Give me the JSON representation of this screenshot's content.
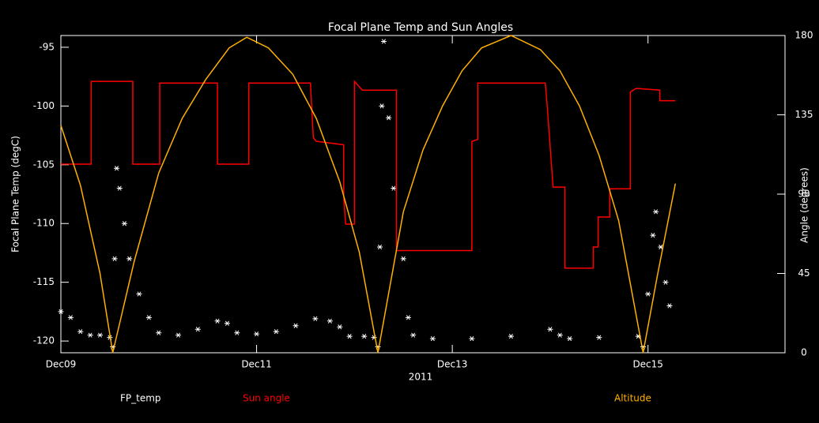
{
  "chart_data": {
    "type": "line",
    "title": "Focal Plane Temp and Sun Angles",
    "xlabel": "2011",
    "ylabel": "Focal Plane Temp (degC)",
    "y2label": "Angle (degrees)",
    "xlim": [
      0,
      7.4
    ],
    "xticks": [
      {
        "value": 0,
        "label": "Dec09"
      },
      {
        "value": 2,
        "label": "Dec11"
      },
      {
        "value": 4,
        "label": "Dec13"
      },
      {
        "value": 6,
        "label": "Dec15"
      }
    ],
    "ylim": [
      -121,
      -94
    ],
    "yticks": [
      -95,
      -100,
      -105,
      -110,
      -115,
      -120
    ],
    "y2lim": [
      0,
      180
    ],
    "y2ticks": [
      0,
      45,
      90,
      135,
      180
    ],
    "series": [
      {
        "name": "FP_temp",
        "color": "#ffffff",
        "style": "markers",
        "x": [
          0,
          0.1,
          0.2,
          0.3,
          0.4,
          0.5,
          0.53,
          0.55,
          0.57,
          0.6,
          0.65,
          0.7,
          0.8,
          0.9,
          1.0,
          1.2,
          1.4,
          1.6,
          1.7,
          1.8,
          2.0,
          2.2,
          2.4,
          2.6,
          2.75,
          2.85,
          2.95,
          3.1,
          3.2,
          3.24,
          3.26,
          3.28,
          3.3,
          3.35,
          3.4,
          3.5,
          3.55,
          3.6,
          3.8,
          4.2,
          4.6,
          5.0,
          5.1,
          5.2,
          5.5,
          5.9,
          5.95,
          6.0,
          6.05,
          6.08,
          6.13,
          6.18,
          6.22
        ],
        "values": [
          -117.5,
          -118,
          -119.2,
          -119.5,
          -119.5,
          -119.7,
          -120.5,
          -113,
          -105.3,
          -107,
          -110,
          -113,
          -116,
          -118,
          -119.3,
          -119.5,
          -119,
          -118.3,
          -118.5,
          -119.3,
          -119.4,
          -119.2,
          -118.7,
          -118.1,
          -118.3,
          -118.8,
          -119.6,
          -119.6,
          -119.7,
          -120.5,
          -112,
          -100,
          -94.5,
          -101,
          -107,
          -113,
          -118,
          -119.5,
          -119.8,
          -119.8,
          -119.6,
          -119,
          -119.5,
          -119.8,
          -119.7,
          -119.6,
          -120.5,
          -116,
          -111,
          -109,
          -112,
          -115,
          -117
        ]
      },
      {
        "name": "Sun angle",
        "color": "#ff0000",
        "style": "line",
        "axis": "y2",
        "x": [
          0,
          0.31,
          0.31,
          0.735,
          0.735,
          1.01,
          1.01,
          1.6,
          1.6,
          1.92,
          1.92,
          2.55,
          2.58,
          2.61,
          2.89,
          2.89,
          2.91,
          3.0,
          3.0,
          3.08,
          3.43,
          3.43,
          4.2,
          4.2,
          4.26,
          4.26,
          4.95,
          4.97,
          5.03,
          5.15,
          5.15,
          5.44,
          5.44,
          5.49,
          5.49,
          5.61,
          5.61,
          5.82,
          5.82,
          5.88,
          6.12,
          6.12,
          6.28
        ],
        "values": [
          107,
          107,
          154,
          154,
          107,
          107,
          153,
          153,
          107,
          107,
          153,
          153,
          122,
          120,
          118,
          89,
          73,
          73,
          154,
          149,
          149,
          58,
          58,
          120,
          121,
          153,
          153,
          140,
          94,
          94,
          48,
          48,
          60,
          60,
          77,
          77,
          93,
          93,
          148,
          150,
          149,
          143,
          143
        ]
      },
      {
        "name": "Altitude",
        "color": "#ffb000",
        "style": "line",
        "axis": "y2",
        "x": [
          0,
          0.2,
          0.4,
          0.53,
          0.75,
          1.0,
          1.24,
          1.48,
          1.72,
          1.9,
          2.12,
          2.37,
          2.61,
          2.85,
          3.05,
          3.24,
          3.5,
          3.7,
          3.9,
          4.1,
          4.3,
          4.6,
          4.9,
          5.1,
          5.3,
          5.5,
          5.7,
          5.95,
          6.1,
          6.28
        ],
        "values": [
          129,
          95,
          45,
          0,
          52,
          102,
          133,
          155,
          173,
          179,
          173,
          158,
          133,
          97,
          57,
          0,
          80,
          115,
          140,
          160,
          173,
          180,
          172,
          160,
          140,
          112,
          75,
          0,
          45,
          96
        ]
      }
    ]
  }
}
